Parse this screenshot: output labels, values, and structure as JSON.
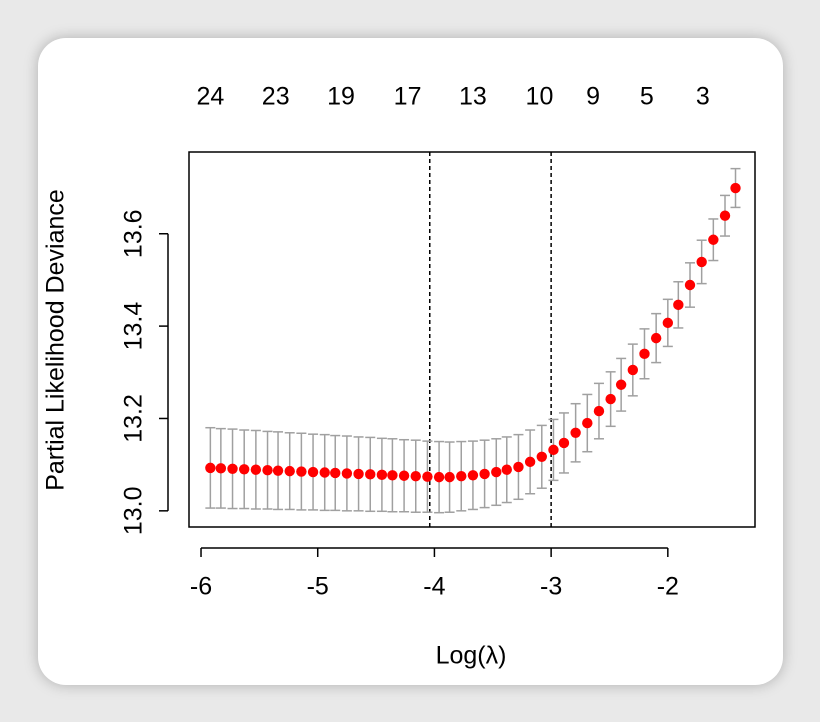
{
  "chart_data": {
    "type": "errorbar",
    "xlabel": "Log(λ)",
    "ylabel": "Partial Likelihood Deviance",
    "x": [
      -5.92,
      -5.83,
      -5.73,
      -5.63,
      -5.53,
      -5.43,
      -5.34,
      -5.24,
      -5.14,
      -5.04,
      -4.94,
      -4.85,
      -4.75,
      -4.65,
      -4.55,
      -4.45,
      -4.36,
      -4.26,
      -4.16,
      -4.06,
      -3.96,
      -3.87,
      -3.77,
      -3.67,
      -3.57,
      -3.47,
      -3.38,
      -3.28,
      -3.18,
      -3.08,
      -2.98,
      -2.89,
      -2.79,
      -2.69,
      -2.59,
      -2.49,
      -2.4,
      -2.3,
      -2.2,
      -2.1,
      -2.0,
      -1.91,
      -1.81,
      -1.71,
      -1.61,
      -1.51,
      -1.42
    ],
    "values": [
      13.093,
      13.092,
      13.091,
      13.09,
      13.089,
      13.088,
      13.087,
      13.086,
      13.085,
      13.084,
      13.083,
      13.082,
      13.081,
      13.08,
      13.079,
      13.078,
      13.077,
      13.076,
      13.075,
      13.074,
      13.073,
      13.073,
      13.075,
      13.077,
      13.08,
      13.084,
      13.089,
      13.095,
      13.106,
      13.117,
      13.132,
      13.147,
      13.169,
      13.19,
      13.216,
      13.242,
      13.273,
      13.305,
      13.34,
      13.374,
      13.407,
      13.446,
      13.489,
      13.539,
      13.587,
      13.639,
      13.699
    ],
    "errors": [
      0.087,
      0.086,
      0.086,
      0.085,
      0.085,
      0.084,
      0.084,
      0.083,
      0.083,
      0.082,
      0.082,
      0.081,
      0.081,
      0.08,
      0.08,
      0.079,
      0.079,
      0.078,
      0.078,
      0.077,
      0.077,
      0.076,
      0.075,
      0.074,
      0.073,
      0.072,
      0.071,
      0.07,
      0.069,
      0.068,
      0.066,
      0.065,
      0.063,
      0.062,
      0.06,
      0.059,
      0.057,
      0.056,
      0.054,
      0.053,
      0.051,
      0.05,
      0.048,
      0.047,
      0.045,
      0.044,
      0.042
    ],
    "color": "#ff0000",
    "error_color": "#a0a0a0",
    "vlines": [
      -4.04,
      -3.0
    ],
    "xlim": [
      -6.103,
      -1.253
    ],
    "ylim": [
      12.965,
      13.777
    ],
    "xticks": [
      -6,
      -5,
      -4,
      -3,
      -2
    ],
    "yticks": [
      {
        "value": 13.0,
        "label": "13.0"
      },
      13.2,
      13.4,
      13.6
    ],
    "top_ticks": [
      {
        "value": -5.92,
        "label": "24"
      },
      {
        "value": -5.36,
        "label": "23"
      },
      {
        "value": -4.8,
        "label": "19"
      },
      {
        "value": -4.23,
        "label": "17"
      },
      {
        "value": -3.67,
        "label": "13"
      },
      {
        "value": -3.1,
        "label": "10"
      },
      {
        "value": -2.64,
        "label": "9"
      },
      {
        "value": -2.18,
        "label": "5"
      },
      {
        "value": -1.7,
        "label": "3"
      }
    ]
  }
}
